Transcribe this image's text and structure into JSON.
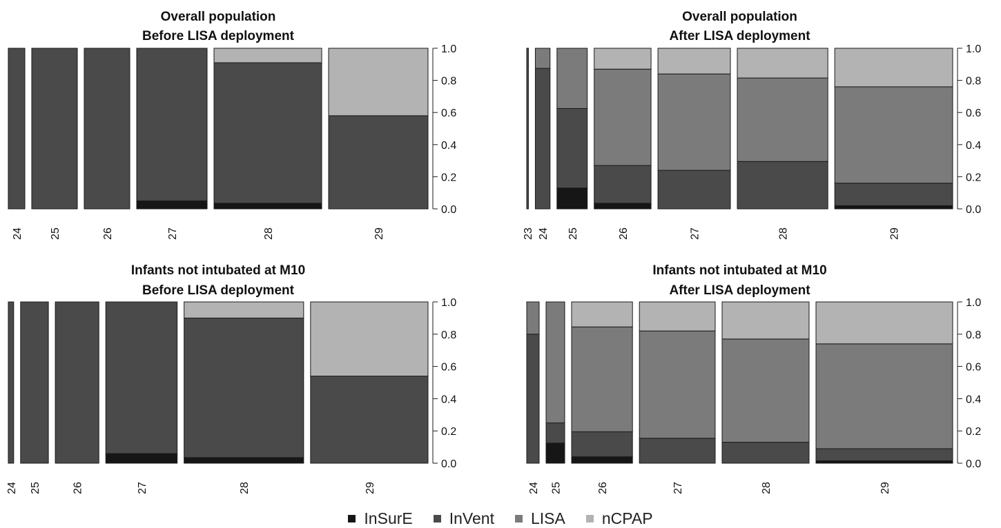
{
  "colors": {
    "InSurE": "#161616",
    "InVent": "#4a4a4a",
    "LISA": "#7b7b7b",
    "nCPAP": "#b3b3b3",
    "outline": "#1a1a1a",
    "text": "#111111"
  },
  "legend": {
    "items": [
      {
        "label": "InSurE",
        "key": "InSurE"
      },
      {
        "label": "InVent",
        "key": "InVent"
      },
      {
        "label": "LISA",
        "key": "LISA"
      },
      {
        "label": "nCPAP",
        "key": "nCPAP"
      }
    ]
  },
  "chart_data": [
    {
      "type": "bar",
      "subtype": "stacked-proportional-mosaic",
      "title": "Overall population",
      "subtitle": "Before LISA deployment",
      "xlabel": "",
      "ylabel": "",
      "ylim": [
        0,
        1
      ],
      "yticks": [
        "0.0",
        "0.2",
        "0.4",
        "0.6",
        "0.8",
        "1.0"
      ],
      "axis_side": "right",
      "grid": false,
      "categories": [
        "24",
        "25",
        "26",
        "27",
        "28",
        "29"
      ],
      "relative_widths": [
        0.04,
        0.11,
        0.11,
        0.17,
        0.26,
        0.24
      ],
      "series": [
        {
          "name": "InSurE",
          "values": [
            0,
            0,
            0,
            0.05,
            0.035,
            0
          ]
        },
        {
          "name": "InVent",
          "values": [
            1,
            1,
            1,
            0.95,
            0.875,
            0.58
          ]
        },
        {
          "name": "LISA",
          "values": [
            0,
            0,
            0,
            0,
            0,
            0
          ]
        },
        {
          "name": "nCPAP",
          "values": [
            0,
            0,
            0,
            0,
            0.09,
            0.42
          ]
        }
      ]
    },
    {
      "type": "bar",
      "subtype": "stacked-proportional-mosaic",
      "title": "Overall population",
      "subtitle": "After LISA deployment",
      "xlabel": "",
      "ylabel": "",
      "ylim": [
        0,
        1
      ],
      "yticks": [
        "0.0",
        "0.2",
        "0.4",
        "0.6",
        "0.8",
        "1.0"
      ],
      "axis_side": "right",
      "grid": false,
      "categories": [
        "23",
        "24",
        "25",
        "26",
        "27",
        "28",
        "29"
      ],
      "relative_widths": [
        0.004,
        0.035,
        0.072,
        0.135,
        0.172,
        0.215,
        0.28
      ],
      "series": [
        {
          "name": "InSurE",
          "values": [
            0,
            0,
            0.13,
            0.035,
            0,
            0,
            0.02
          ]
        },
        {
          "name": "InVent",
          "values": [
            1,
            0.875,
            0.495,
            0.235,
            0.24,
            0.295,
            0.14
          ]
        },
        {
          "name": "LISA",
          "values": [
            0,
            0.125,
            0.375,
            0.6,
            0.6,
            0.52,
            0.6
          ]
        },
        {
          "name": "nCPAP",
          "values": [
            0,
            0,
            0,
            0.13,
            0.16,
            0.185,
            0.24
          ]
        }
      ]
    },
    {
      "type": "bar",
      "subtype": "stacked-proportional-mosaic",
      "title": "Infants not intubated at M10",
      "subtitle": "Before LISA deployment",
      "xlabel": "",
      "ylabel": "",
      "ylim": [
        0,
        1
      ],
      "yticks": [
        "0.0",
        "0.2",
        "0.4",
        "0.6",
        "0.8",
        "1.0"
      ],
      "axis_side": "right",
      "grid": false,
      "categories": [
        "24",
        "25",
        "26",
        "27",
        "28",
        "29"
      ],
      "relative_widths": [
        0.013,
        0.067,
        0.105,
        0.172,
        0.288,
        0.283
      ],
      "series": [
        {
          "name": "InSurE",
          "values": [
            0,
            0,
            0,
            0.06,
            0.035,
            0
          ]
        },
        {
          "name": "InVent",
          "values": [
            1,
            1,
            1,
            0.94,
            0.865,
            0.54
          ]
        },
        {
          "name": "LISA",
          "values": [
            0,
            0,
            0,
            0,
            0,
            0
          ]
        },
        {
          "name": "nCPAP",
          "values": [
            0,
            0,
            0,
            0,
            0.1,
            0.46
          ]
        }
      ]
    },
    {
      "type": "bar",
      "subtype": "stacked-proportional-mosaic",
      "title": "Infants not intubated at M10",
      "subtitle": "After LISA deployment",
      "xlabel": "",
      "ylabel": "",
      "ylim": [
        0,
        1
      ],
      "yticks": [
        "0.0",
        "0.2",
        "0.4",
        "0.6",
        "0.8",
        "1.0"
      ],
      "axis_side": "right",
      "grid": false,
      "categories": [
        "24",
        "25",
        "26",
        "27",
        "28",
        "29"
      ],
      "relative_widths": [
        0.03,
        0.045,
        0.147,
        0.183,
        0.21,
        0.33
      ],
      "series": [
        {
          "name": "InSurE",
          "values": [
            0,
            0.125,
            0.04,
            0,
            0,
            0.015
          ]
        },
        {
          "name": "InVent",
          "values": [
            0.8,
            0.125,
            0.155,
            0.155,
            0.13,
            0.075
          ]
        },
        {
          "name": "LISA",
          "values": [
            0.2,
            0.75,
            0.65,
            0.665,
            0.64,
            0.65
          ]
        },
        {
          "name": "nCPAP",
          "values": [
            0,
            0,
            0.155,
            0.18,
            0.23,
            0.26
          ]
        }
      ]
    }
  ]
}
